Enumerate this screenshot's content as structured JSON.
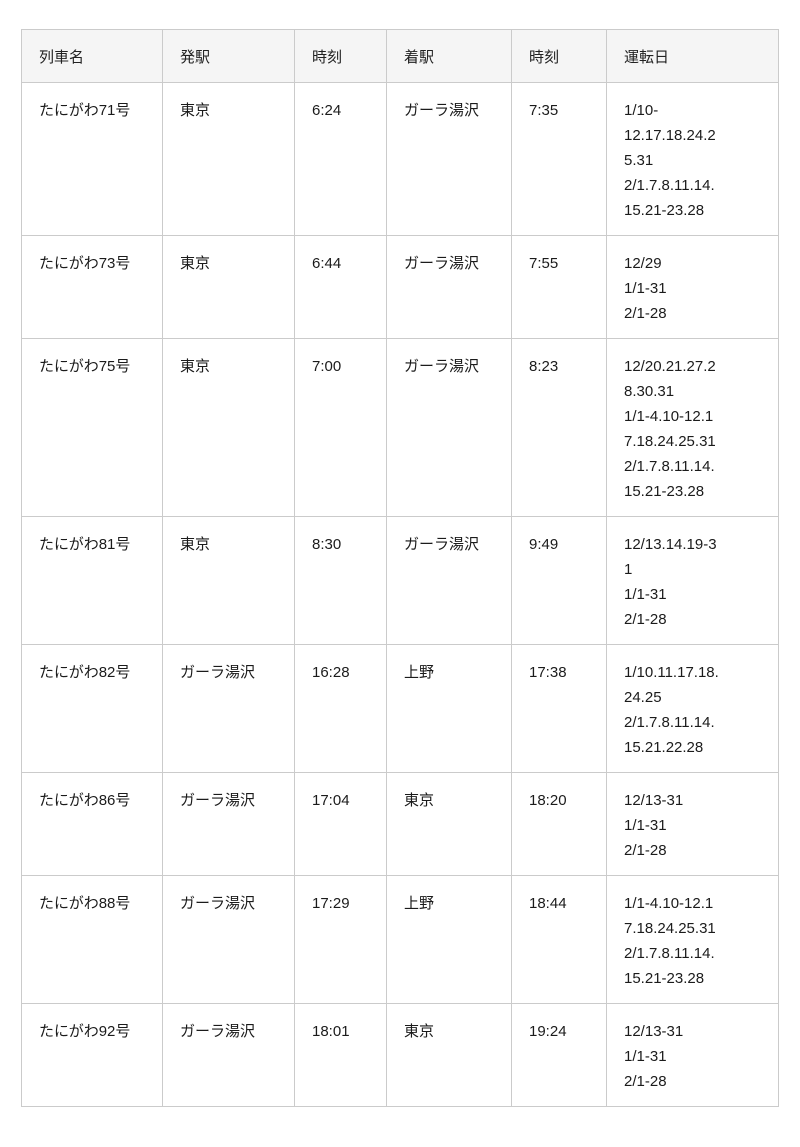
{
  "page": {
    "background": "#ffffff"
  },
  "colors": {
    "header_bg": "#f5f5f5",
    "border": "#cbcbcb",
    "text": "#1b1b1b",
    "header_text": "#222222"
  },
  "table": {
    "columns": [
      {
        "key": "train",
        "label": "列車名"
      },
      {
        "key": "from",
        "label": "発駅"
      },
      {
        "key": "dep",
        "label": "時刻"
      },
      {
        "key": "to",
        "label": "着駅"
      },
      {
        "key": "arr",
        "label": "時刻"
      },
      {
        "key": "days",
        "label": "運転日"
      }
    ],
    "rows": [
      {
        "train": "たにがわ71号",
        "from": "東京",
        "dep": "6:24",
        "to": "ガーラ湯沢",
        "arr": "7:35",
        "days": [
          "1/10-",
          "12.17.18.24.2",
          "5.31",
          "2/1.7.8.11.14.",
          "15.21-23.28"
        ]
      },
      {
        "train": "たにがわ73号",
        "from": "東京",
        "dep": "6:44",
        "to": "ガーラ湯沢",
        "arr": "7:55",
        "days": [
          "12/29",
          "1/1-31",
          "2/1-28"
        ]
      },
      {
        "train": "たにがわ75号",
        "from": "東京",
        "dep": "7:00",
        "to": "ガーラ湯沢",
        "arr": "8:23",
        "days": [
          "12/20.21.27.2",
          "8.30.31",
          "1/1-4.10-12.1",
          "7.18.24.25.31",
          "2/1.7.8.11.14.",
          "15.21-23.28"
        ]
      },
      {
        "train": "たにがわ81号",
        "from": "東京",
        "dep": "8:30",
        "to": "ガーラ湯沢",
        "arr": "9:49",
        "days": [
          "12/13.14.19-3",
          "1",
          "1/1-31",
          "2/1-28"
        ]
      },
      {
        "train": "たにがわ82号",
        "from": "ガーラ湯沢",
        "dep": "16:28",
        "to": "上野",
        "arr": "17:38",
        "days": [
          "1/10.11.17.18.",
          "24.25",
          "2/1.7.8.11.14.",
          "15.21.22.28"
        ]
      },
      {
        "train": "たにがわ86号",
        "from": "ガーラ湯沢",
        "dep": "17:04",
        "to": "東京",
        "arr": "18:20",
        "days": [
          "12/13-31",
          "1/1-31",
          "2/1-28"
        ]
      },
      {
        "train": "たにがわ88号",
        "from": "ガーラ湯沢",
        "dep": "17:29",
        "to": "上野",
        "arr": "18:44",
        "days": [
          "1/1-4.10-12.1",
          "7.18.24.25.31",
          "2/1.7.8.11.14.",
          "15.21-23.28"
        ]
      },
      {
        "train": "たにがわ92号",
        "from": "ガーラ湯沢",
        "dep": "18:01",
        "to": "東京",
        "arr": "19:24",
        "days": [
          "12/13-31",
          "1/1-31",
          "2/1-28"
        ]
      }
    ]
  }
}
